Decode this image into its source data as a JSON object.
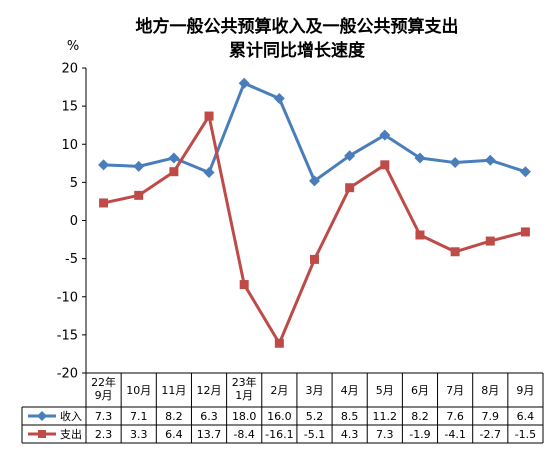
{
  "chart_data": {
    "type": "line",
    "title_lines": [
      "地方一般公共预算收入及一般公共预算支出",
      "累计同比增长速度"
    ],
    "ylabel": "%",
    "ylim": [
      -20,
      20
    ],
    "y_ticks": [
      "20",
      "15",
      "10",
      "5",
      "0",
      "-5",
      "-10",
      "-15",
      "-20"
    ],
    "categories": [
      [
        "22年",
        "9月"
      ],
      [
        "10月"
      ],
      [
        "11月"
      ],
      [
        "12月"
      ],
      [
        "23年",
        "1月"
      ],
      [
        "2月"
      ],
      [
        "3月"
      ],
      [
        "4月"
      ],
      [
        "5月"
      ],
      [
        "6月"
      ],
      [
        "7月"
      ],
      [
        "8月"
      ],
      [
        "9月"
      ]
    ],
    "grid": false,
    "legend": "data-table",
    "series": [
      {
        "name": "收入",
        "color": "#4a7ebb",
        "marker": "diamond",
        "values": [
          7.3,
          7.1,
          8.2,
          6.3,
          18.0,
          16.0,
          5.2,
          8.5,
          11.2,
          8.2,
          7.6,
          7.9,
          6.4
        ],
        "labels": [
          "7.3",
          "7.1",
          "8.2",
          "6.3",
          "18.0",
          "16.0",
          "5.2",
          "8.5",
          "11.2",
          "8.2",
          "7.6",
          "7.9",
          "6.4"
        ]
      },
      {
        "name": "支出",
        "color": "#be4b48",
        "marker": "square",
        "values": [
          2.3,
          3.3,
          6.4,
          13.7,
          -8.4,
          -16.1,
          -5.1,
          4.3,
          7.3,
          -1.9,
          -4.1,
          -2.7,
          -1.5
        ],
        "labels": [
          "2.3",
          "3.3",
          "6.4",
          "13.7",
          "-8.4",
          "-16.1",
          "-5.1",
          "4.3",
          "7.3",
          "-1.9",
          "-4.1",
          "-2.7",
          "-1.5"
        ]
      }
    ]
  }
}
